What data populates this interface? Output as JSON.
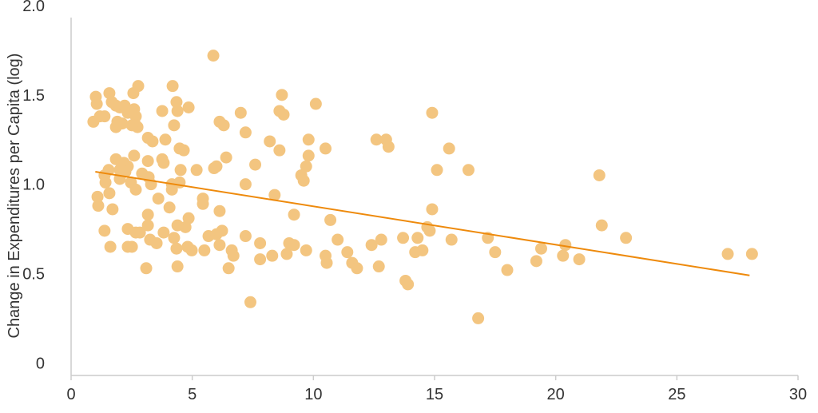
{
  "chart_data": {
    "type": "scatter",
    "title": "",
    "xlabel": "",
    "ylabel": "Change in Expenditures per Capita (log)",
    "xlim": [
      0,
      30
    ],
    "ylim": [
      -0.07,
      2.0
    ],
    "xticks": [
      0,
      5,
      10,
      15,
      20,
      25,
      30
    ],
    "xtick_labels": [
      "0",
      "5",
      "10",
      "15",
      "20",
      "25",
      "30"
    ],
    "yticks": [
      0,
      0.5,
      1.0,
      1.5,
      2.0
    ],
    "ytick_labels": [
      "0",
      "0.5",
      "1.0",
      "1.5",
      "2.0"
    ],
    "grid": false,
    "colors": {
      "points": "#F3C580",
      "trendline": "#EE8A0C",
      "axis": "#CCCCCC"
    },
    "trendline": {
      "x": [
        1,
        28
      ],
      "y": [
        1.07,
        0.49
      ]
    },
    "points": [
      [
        0.92,
        1.35
      ],
      [
        1.02,
        1.49
      ],
      [
        1.06,
        1.45
      ],
      [
        1.19,
        1.38
      ],
      [
        1.38,
        1.38
      ],
      [
        1.58,
        1.51
      ],
      [
        1.68,
        1.46
      ],
      [
        1.85,
        1.44
      ],
      [
        2.01,
        1.43
      ],
      [
        2.21,
        1.44
      ],
      [
        1.91,
        1.35
      ],
      [
        1.85,
        1.32
      ],
      [
        2.11,
        1.34
      ],
      [
        2.34,
        1.4
      ],
      [
        2.6,
        1.42
      ],
      [
        2.67,
        1.38
      ],
      [
        2.77,
        1.55
      ],
      [
        2.57,
        1.51
      ],
      [
        2.67,
        1.33
      ],
      [
        2.74,
        1.32
      ],
      [
        2.51,
        1.33
      ],
      [
        3.17,
        1.26
      ],
      [
        3.36,
        1.24
      ],
      [
        3.76,
        1.41
      ],
      [
        4.19,
        1.55
      ],
      [
        4.35,
        1.46
      ],
      [
        4.85,
        1.43
      ],
      [
        4.39,
        1.41
      ],
      [
        4.25,
        1.33
      ],
      [
        3.89,
        1.25
      ],
      [
        4.48,
        1.2
      ],
      [
        4.65,
        1.19
      ],
      [
        5.87,
        1.72
      ],
      [
        2.6,
        1.16
      ],
      [
        1.85,
        1.14
      ],
      [
        2.18,
        1.12
      ],
      [
        2.34,
        1.1
      ],
      [
        2.01,
        1.08
      ],
      [
        2.24,
        1.07
      ],
      [
        1.55,
        1.08
      ],
      [
        1.38,
        1.05
      ],
      [
        1.42,
        1.01
      ],
      [
        1.58,
        0.95
      ],
      [
        1.09,
        0.93
      ],
      [
        1.12,
        0.88
      ],
      [
        1.71,
        0.86
      ],
      [
        1.38,
        0.74
      ],
      [
        1.62,
        0.65
      ],
      [
        2.01,
        1.03
      ],
      [
        2.47,
        1.01
      ],
      [
        2.67,
        0.97
      ],
      [
        2.93,
        1.06
      ],
      [
        3.2,
        1.04
      ],
      [
        3.3,
        1.0
      ],
      [
        3.17,
        1.13
      ],
      [
        3.6,
        0.92
      ],
      [
        4.06,
        0.87
      ],
      [
        4.16,
        0.97
      ],
      [
        4.16,
        1.0
      ],
      [
        4.48,
        1.01
      ],
      [
        3.76,
        1.14
      ],
      [
        3.82,
        1.12
      ],
      [
        4.52,
        1.08
      ],
      [
        5.18,
        1.08
      ],
      [
        5.44,
        0.92
      ],
      [
        5.44,
        0.89
      ],
      [
        4.85,
        0.81
      ],
      [
        4.72,
        0.76
      ],
      [
        4.39,
        0.77
      ],
      [
        3.17,
        0.83
      ],
      [
        3.17,
        0.77
      ],
      [
        2.34,
        0.75
      ],
      [
        2.67,
        0.73
      ],
      [
        2.84,
        0.73
      ],
      [
        2.34,
        0.65
      ],
      [
        2.51,
        0.65
      ],
      [
        3.26,
        0.69
      ],
      [
        3.53,
        0.67
      ],
      [
        3.82,
        0.73
      ],
      [
        4.25,
        0.7
      ],
      [
        4.35,
        0.64
      ],
      [
        4.81,
        0.65
      ],
      [
        4.98,
        0.63
      ],
      [
        5.5,
        0.63
      ],
      [
        5.67,
        0.71
      ],
      [
        6.0,
        0.72
      ],
      [
        6.23,
        0.74
      ],
      [
        6.13,
        0.66
      ],
      [
        6.63,
        0.63
      ],
      [
        6.7,
        0.6
      ],
      [
        6.5,
        0.53
      ],
      [
        3.1,
        0.53
      ],
      [
        4.39,
        0.54
      ],
      [
        6.13,
        0.85
      ],
      [
        5.9,
        1.09
      ],
      [
        6.0,
        1.1
      ],
      [
        6.4,
        1.15
      ],
      [
        6.13,
        1.35
      ],
      [
        6.3,
        1.33
      ],
      [
        7.0,
        1.4
      ],
      [
        7.2,
        1.29
      ],
      [
        7.6,
        1.11
      ],
      [
        7.2,
        1.0
      ],
      [
        8.2,
        1.24
      ],
      [
        8.6,
        1.19
      ],
      [
        8.6,
        1.41
      ],
      [
        8.7,
        1.5
      ],
      [
        8.77,
        1.39
      ],
      [
        10.1,
        1.45
      ],
      [
        9.8,
        1.25
      ],
      [
        9.8,
        1.16
      ],
      [
        9.7,
        1.1
      ],
      [
        9.5,
        1.05
      ],
      [
        9.6,
        1.02
      ],
      [
        8.4,
        0.94
      ],
      [
        9.2,
        0.83
      ],
      [
        10.5,
        1.2
      ],
      [
        10.7,
        0.8
      ],
      [
        7.2,
        0.71
      ],
      [
        7.8,
        0.67
      ],
      [
        7.8,
        0.58
      ],
      [
        8.3,
        0.6
      ],
      [
        8.9,
        0.61
      ],
      [
        9.0,
        0.67
      ],
      [
        9.2,
        0.66
      ],
      [
        9.7,
        0.63
      ],
      [
        10.5,
        0.6
      ],
      [
        10.55,
        0.56
      ],
      [
        11.0,
        0.69
      ],
      [
        11.4,
        0.62
      ],
      [
        11.6,
        0.56
      ],
      [
        11.8,
        0.53
      ],
      [
        7.4,
        0.34
      ],
      [
        12.4,
        0.66
      ],
      [
        12.8,
        0.69
      ],
      [
        12.7,
        0.54
      ],
      [
        12.6,
        1.25
      ],
      [
        13.0,
        1.25
      ],
      [
        13.1,
        1.21
      ],
      [
        13.7,
        0.7
      ],
      [
        13.8,
        0.46
      ],
      [
        13.9,
        0.44
      ],
      [
        14.2,
        0.62
      ],
      [
        14.3,
        0.7
      ],
      [
        14.5,
        0.63
      ],
      [
        14.7,
        0.76
      ],
      [
        14.8,
        0.74
      ],
      [
        14.9,
        0.86
      ],
      [
        14.9,
        1.4
      ],
      [
        15.1,
        1.08
      ],
      [
        15.6,
        1.2
      ],
      [
        15.7,
        0.69
      ],
      [
        16.4,
        1.08
      ],
      [
        16.8,
        0.25
      ],
      [
        17.2,
        0.7
      ],
      [
        17.5,
        0.62
      ],
      [
        18.0,
        0.52
      ],
      [
        19.2,
        0.57
      ],
      [
        19.4,
        0.64
      ],
      [
        20.3,
        0.6
      ],
      [
        20.4,
        0.66
      ],
      [
        20.97,
        0.58
      ],
      [
        21.8,
        1.05
      ],
      [
        21.9,
        0.77
      ],
      [
        22.9,
        0.7
      ],
      [
        27.1,
        0.61
      ],
      [
        28.1,
        0.61
      ]
    ]
  }
}
